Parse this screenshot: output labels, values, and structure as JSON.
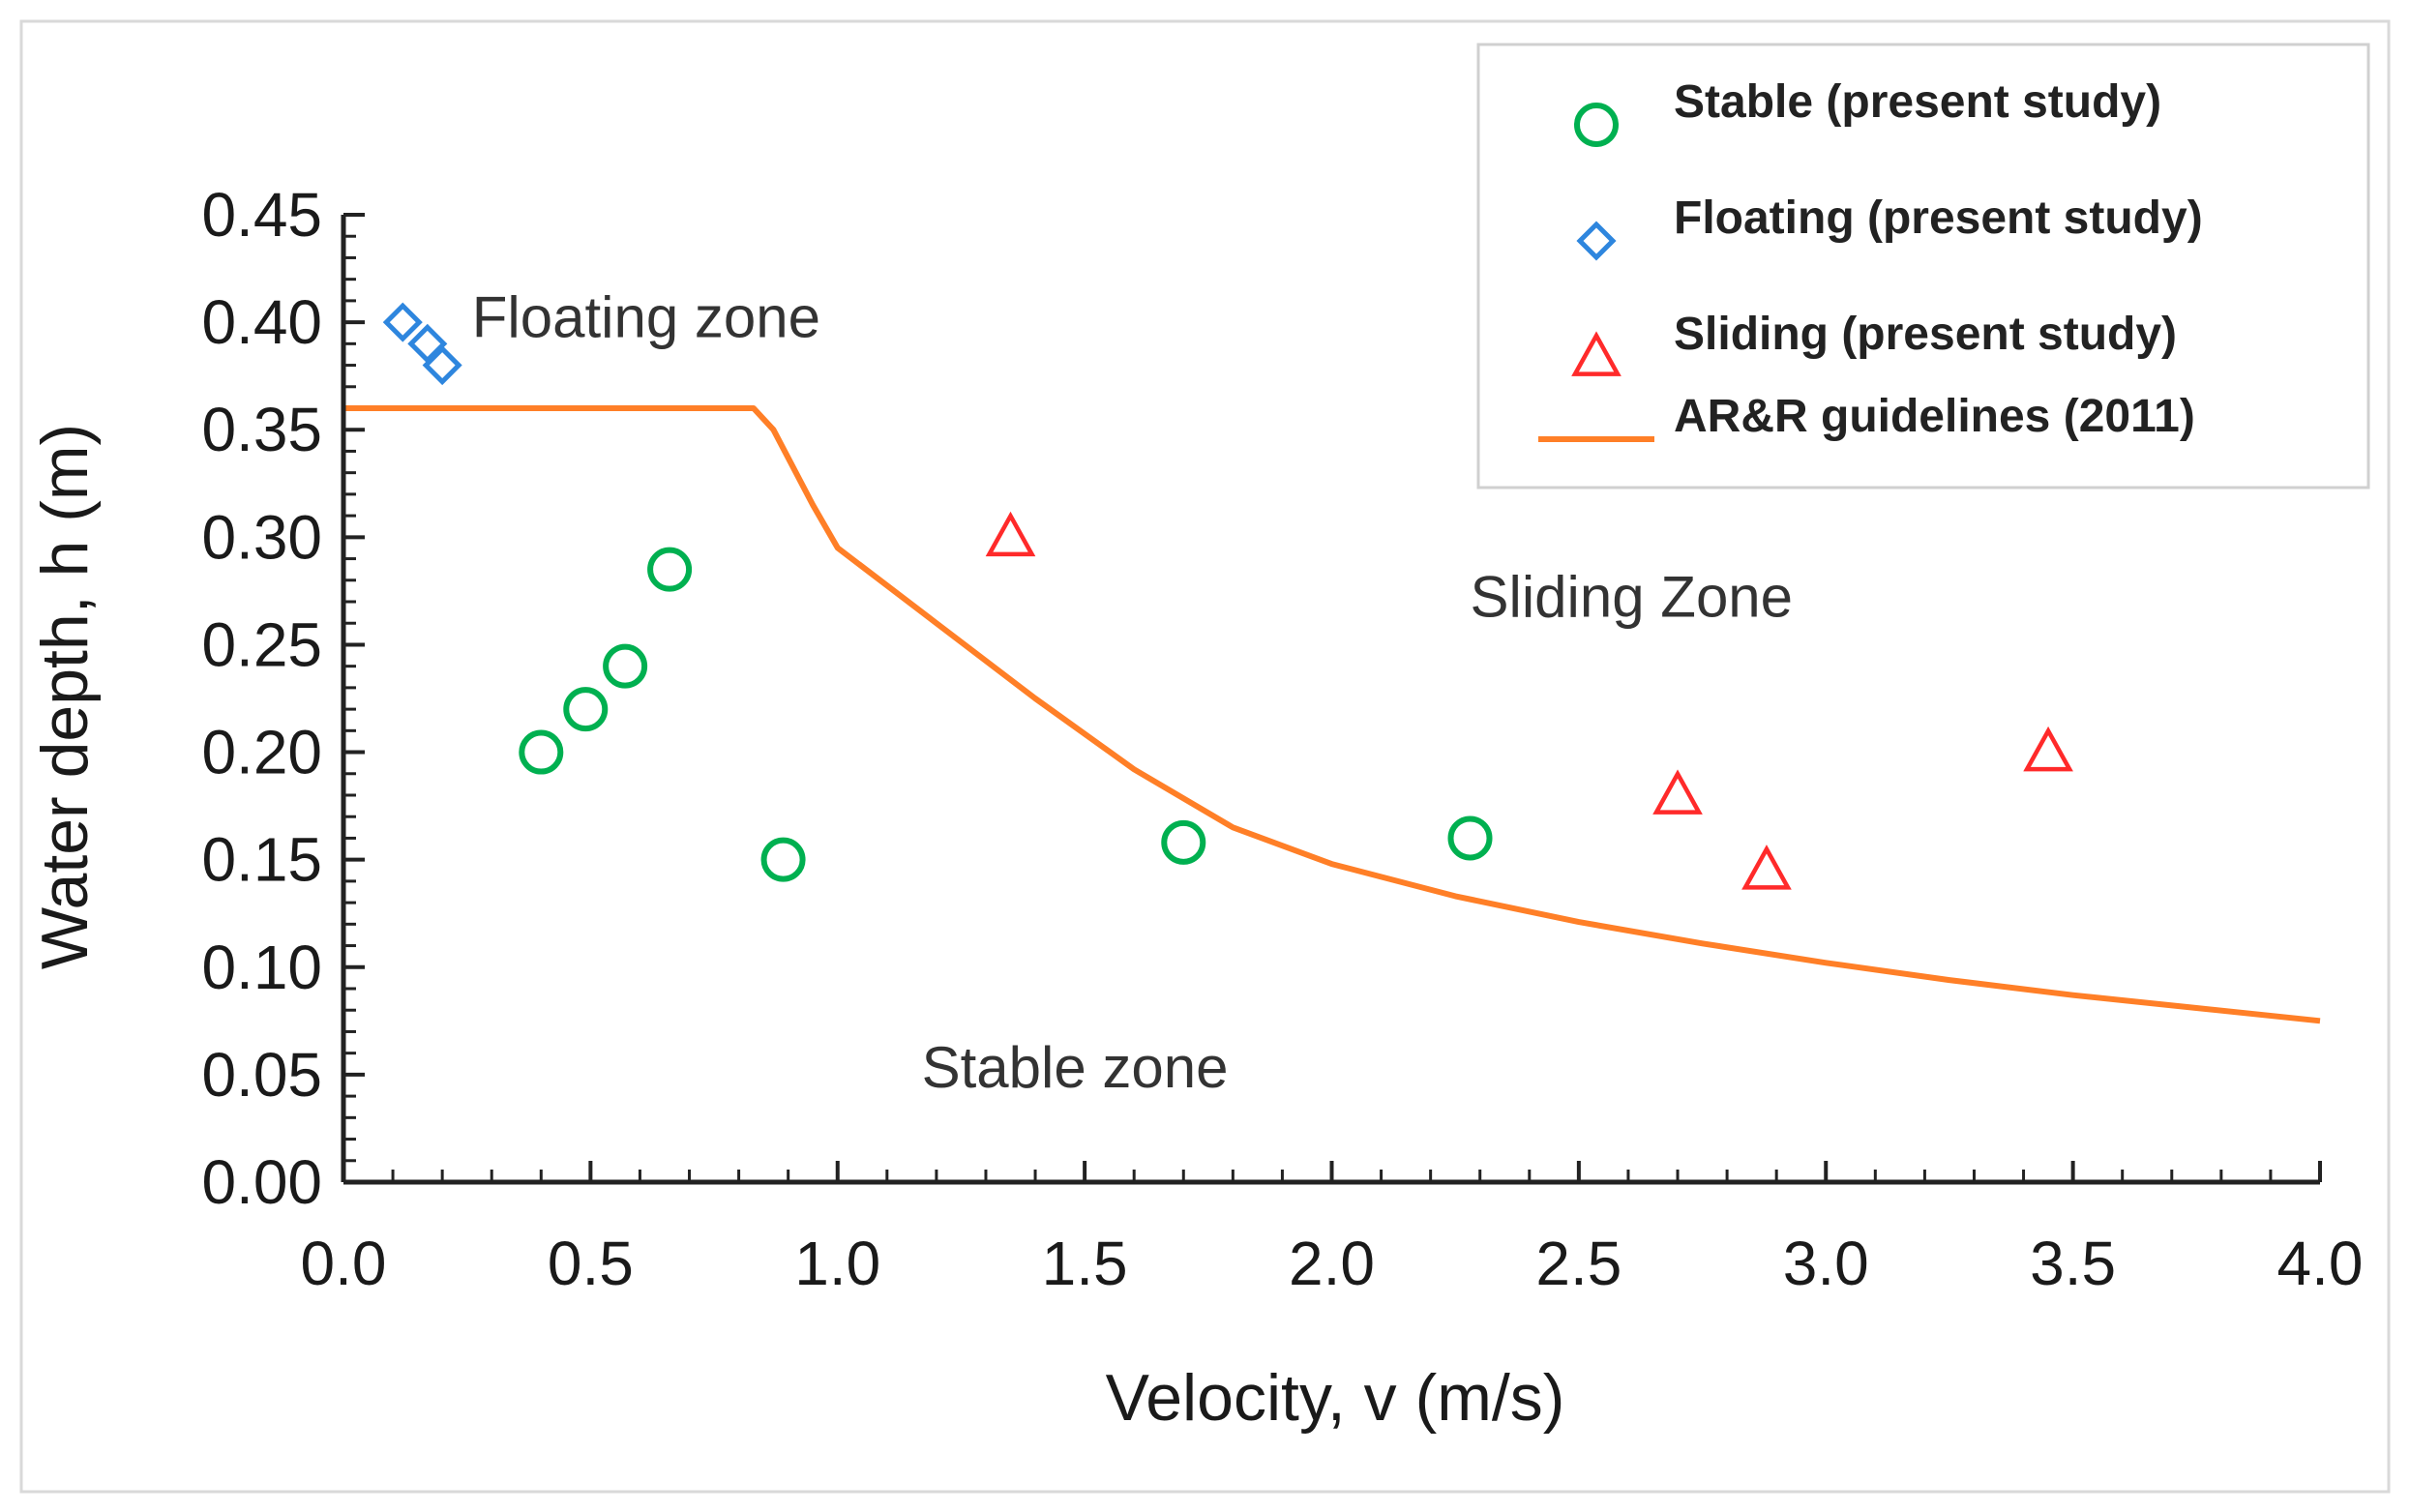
{
  "chart_data": {
    "type": "scatter",
    "xlabel": "Velocity, v (m/s)",
    "ylabel": "Water depth, h (m)",
    "xlim": [
      0,
      4
    ],
    "ylim": [
      0,
      0.45
    ],
    "x_ticks": [
      {
        "value": 0.0,
        "label": "0.0"
      },
      {
        "value": 0.5,
        "label": "0.5"
      },
      {
        "value": 1.0,
        "label": "1.0"
      },
      {
        "value": 1.5,
        "label": "1.5"
      },
      {
        "value": 2.0,
        "label": "2.0"
      },
      {
        "value": 2.5,
        "label": "2.5"
      },
      {
        "value": 3.0,
        "label": "3.0"
      },
      {
        "value": 3.5,
        "label": "3.5"
      },
      {
        "value": 4.0,
        "label": "4.0"
      }
    ],
    "y_ticks": [
      {
        "value": 0.0,
        "label": "0.00"
      },
      {
        "value": 0.05,
        "label": "0.05"
      },
      {
        "value": 0.1,
        "label": "0.10"
      },
      {
        "value": 0.15,
        "label": "0.15"
      },
      {
        "value": 0.2,
        "label": "0.20"
      },
      {
        "value": 0.25,
        "label": "0.25"
      },
      {
        "value": 0.3,
        "label": "0.30"
      },
      {
        "value": 0.35,
        "label": "0.35"
      },
      {
        "value": 0.4,
        "label": "0.40"
      },
      {
        "value": 0.45,
        "label": "0.45"
      }
    ],
    "series": [
      {
        "name": "Stable (present study)",
        "marker": "circle",
        "color": "#00b050",
        "points": [
          [
            0.4,
            0.2
          ],
          [
            0.49,
            0.22
          ],
          [
            0.57,
            0.24
          ],
          [
            0.66,
            0.285
          ],
          [
            0.89,
            0.15
          ],
          [
            1.7,
            0.158
          ],
          [
            2.28,
            0.16
          ]
        ]
      },
      {
        "name": "Floating  (present study)",
        "marker": "diamond",
        "color": "#2e86de",
        "points": [
          [
            0.12,
            0.4
          ],
          [
            0.17,
            0.39
          ],
          [
            0.2,
            0.38
          ]
        ]
      },
      {
        "name": "Sliding  (present study)",
        "marker": "triangle",
        "color": "#ff2a2a",
        "points": [
          [
            1.35,
            0.3
          ],
          [
            2.7,
            0.18
          ],
          [
            2.88,
            0.145
          ],
          [
            3.45,
            0.2
          ]
        ]
      },
      {
        "name": "AR&R guidelines (2011)",
        "marker": "line",
        "color": "#ff7f27",
        "points": [
          [
            0.0,
            0.36
          ],
          [
            0.83,
            0.36
          ],
          [
            0.87,
            0.35
          ],
          [
            0.95,
            0.315
          ],
          [
            1.0,
            0.295
          ],
          [
            1.2,
            0.26
          ],
          [
            1.4,
            0.225
          ],
          [
            1.6,
            0.192
          ],
          [
            1.8,
            0.165
          ],
          [
            2.0,
            0.148
          ],
          [
            2.25,
            0.133
          ],
          [
            2.5,
            0.121
          ],
          [
            2.75,
            0.111
          ],
          [
            3.0,
            0.102
          ],
          [
            3.25,
            0.094
          ],
          [
            3.5,
            0.087
          ],
          [
            3.75,
            0.081
          ],
          [
            4.0,
            0.075
          ]
        ]
      }
    ],
    "annotations": [
      {
        "text": "Floating zone",
        "x": 0.26,
        "y": 0.393
      },
      {
        "text": "Sliding Zone",
        "x": 2.28,
        "y": 0.263
      },
      {
        "text": "Stable zone",
        "x": 1.17,
        "y": 0.044
      }
    ],
    "legend_position": "top-right",
    "grid": false
  }
}
